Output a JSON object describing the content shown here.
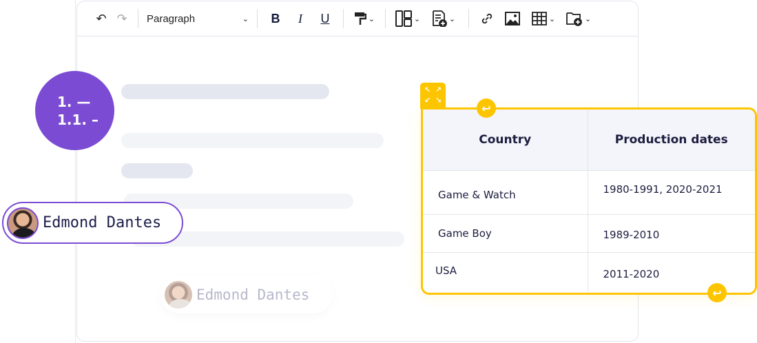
{
  "toolbar": {
    "undo": "↶",
    "redo": "↷",
    "style_select": "Paragraph",
    "bold": "B",
    "italic": "I",
    "underline": "U"
  },
  "list_badge": {
    "line1": "1. —",
    "line2": "1.1. –"
  },
  "mention": {
    "name": "Edmond Dantes"
  },
  "mention_faded": {
    "name": "Edmond Dantes"
  },
  "table": {
    "headers": [
      "Country",
      "Production dates"
    ],
    "rows": [
      [
        "Game & Watch",
        "1980-1991, 2020-2021"
      ],
      [
        "Game Boy",
        "1989-2010"
      ],
      [
        "USA",
        "2011-2020"
      ]
    ]
  },
  "colors": {
    "accent_purple": "#7b4bd4",
    "table_selection": "#fdc500"
  }
}
